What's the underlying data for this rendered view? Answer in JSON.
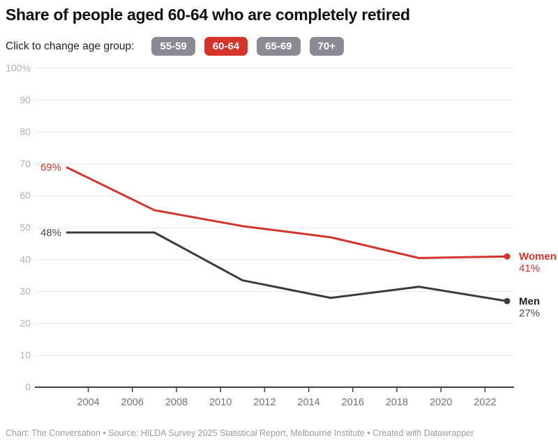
{
  "title": "Share of people aged 60-64 who are completely retired",
  "controls": {
    "label": "Click to change age group:",
    "buttons": [
      {
        "label": "55-59",
        "active": false
      },
      {
        "label": "60-64",
        "active": true
      },
      {
        "label": "65-69",
        "active": false
      },
      {
        "label": "70+",
        "active": false
      }
    ]
  },
  "colors": {
    "accent_red": "#d5342c",
    "button_gray": "#8b8a94",
    "line_dark": "#3b3b3b",
    "grid": "#e7e7e7",
    "axis": "#3f3f3f",
    "x_tick_label": "#717171",
    "y_tick_label": "#b1b1b1",
    "footer_text": "#9b9b9b"
  },
  "chart_data": {
    "type": "line",
    "x": [
      2003,
      2007,
      2011,
      2015,
      2019,
      2023
    ],
    "series": [
      {
        "name": "Women",
        "values": [
          69,
          55.5,
          50.5,
          47,
          40.5,
          41
        ],
        "color": "#d5342c",
        "label_color": "#d5342c",
        "value_color": "#d5342c",
        "start_label": "69%",
        "end_label": "41%"
      },
      {
        "name": "Men",
        "values": [
          48.5,
          48.5,
          33.5,
          28,
          31.5,
          27
        ],
        "color": "#3b3b3b",
        "label_color": "#1f1f1f",
        "value_color": "#474747",
        "start_label": "48%",
        "end_label": "27%"
      }
    ],
    "title": "Share of people aged 60-64 who are completely retired",
    "xlabel": "",
    "ylabel": "",
    "ylim": [
      0,
      100
    ],
    "y_ticks": [
      0,
      10,
      20,
      30,
      40,
      50,
      60,
      70,
      80,
      90,
      100
    ],
    "y_tick_labels": [
      "0",
      "10",
      "20",
      "30",
      "40",
      "50",
      "60",
      "70",
      "80",
      "90",
      "100%"
    ],
    "x_ticks": [
      2004,
      2006,
      2008,
      2010,
      2012,
      2014,
      2016,
      2018,
      2020,
      2022
    ],
    "grid": "horizontal",
    "legend_position": "end-of-line-labels"
  },
  "footer": "Chart: The Conversation • Source: HILDA Survey 2025 Statistical Report, Melbourne Institute • Created with Datawrapper"
}
